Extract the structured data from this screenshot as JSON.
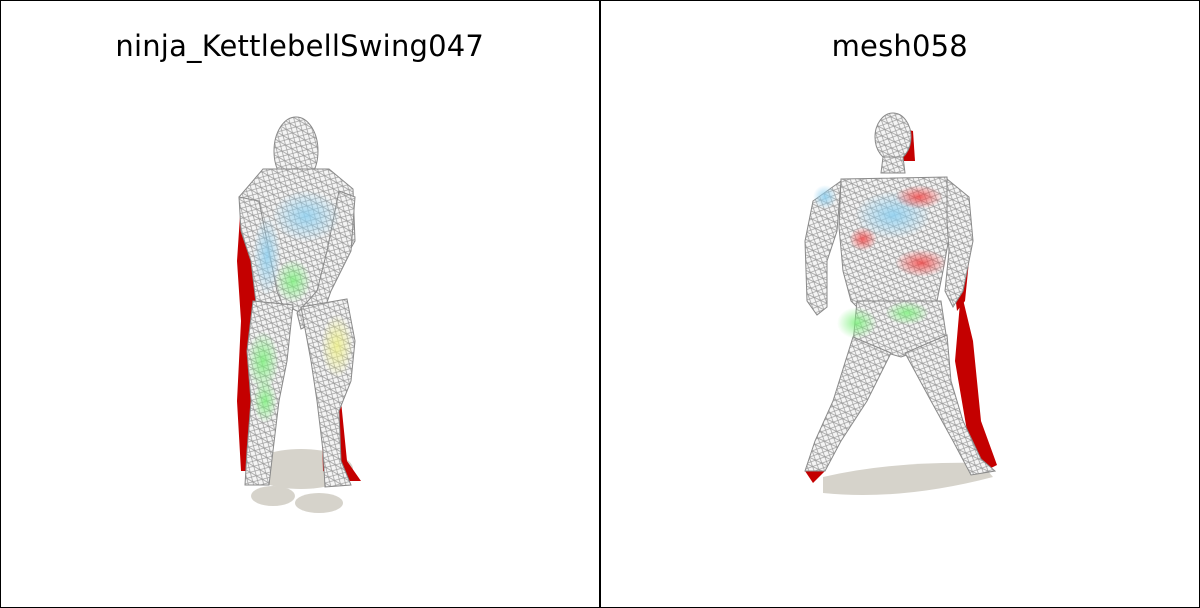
{
  "panels": [
    {
      "title": "ninja_KettlebellSwing047"
    },
    {
      "title": "mesh058"
    }
  ],
  "colors": {
    "mesh_wire": "#d9d9d9",
    "mesh_edge": "#7a7a7a",
    "backface": "#c80000",
    "shadow": "#d6d3cb",
    "highlight_blue": "#8fd0f0",
    "highlight_green": "#8ff08f",
    "highlight_yellow": "#f0f09a",
    "highlight_red": "#f05050"
  }
}
